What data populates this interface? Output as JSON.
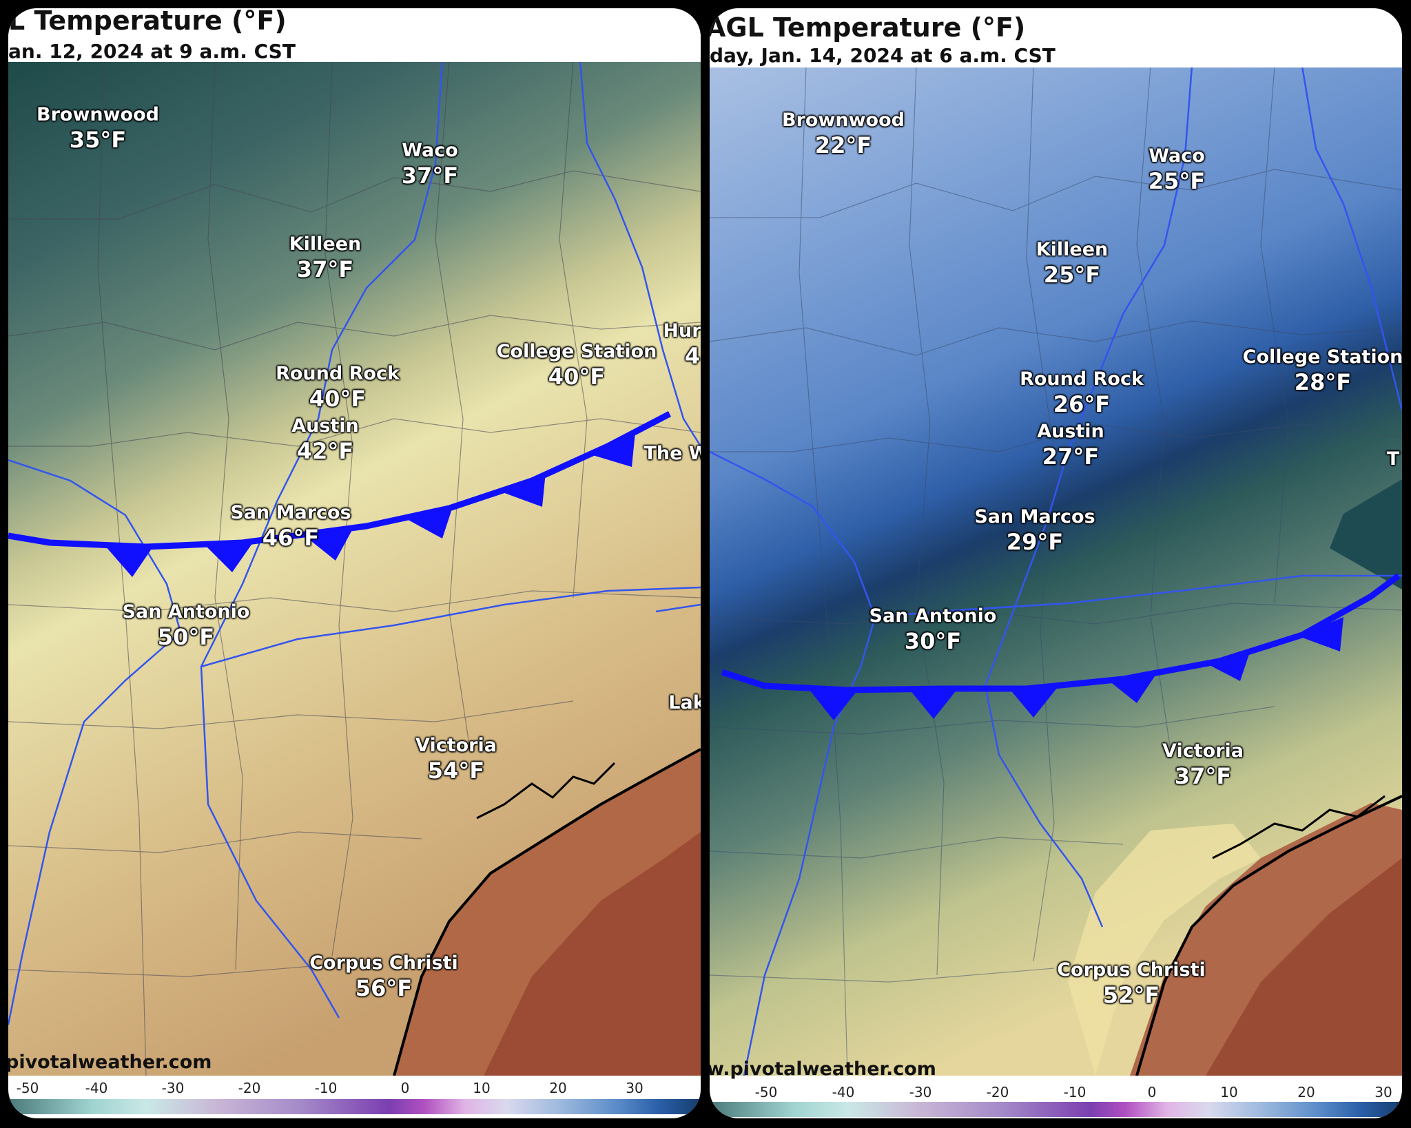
{
  "panels": {
    "left": {
      "title": "L Temperature (°F)",
      "subtitle": "an. 12, 2024 at 9 a.m. CST",
      "credit": "pivotalweather.com",
      "cities": [
        {
          "name": "Brownwood",
          "temp": "35°F"
        },
        {
          "name": "Waco",
          "temp": "37°F"
        },
        {
          "name": "Killeen",
          "temp": "37°F"
        },
        {
          "name": "College Station",
          "temp": "40°F"
        },
        {
          "name": "Round Rock",
          "temp": "40°F"
        },
        {
          "name": "Austin",
          "temp": "42°F"
        },
        {
          "name": "San Marcos",
          "temp": "46°F"
        },
        {
          "name": "San Antonio",
          "temp": "50°F"
        },
        {
          "name": "Victoria",
          "temp": "54°F"
        },
        {
          "name": "Corpus Christi",
          "temp": "56°F"
        }
      ],
      "partial_labels": [
        "Hur",
        "4",
        "The W",
        "Lak"
      ]
    },
    "right": {
      "title": "AGL Temperature (°F)",
      "subtitle": "day, Jan. 14, 2024 at 6 a.m. CST",
      "credit": "w.pivotalweather.com",
      "cities": [
        {
          "name": "Brownwood",
          "temp": "22°F"
        },
        {
          "name": "Waco",
          "temp": "25°F"
        },
        {
          "name": "Killeen",
          "temp": "25°F"
        },
        {
          "name": "College Station",
          "temp": "28°F"
        },
        {
          "name": "Round Rock",
          "temp": "26°F"
        },
        {
          "name": "Austin",
          "temp": "27°F"
        },
        {
          "name": "San Marcos",
          "temp": "29°F"
        },
        {
          "name": "San Antonio",
          "temp": "30°F"
        },
        {
          "name": "Victoria",
          "temp": "37°F"
        },
        {
          "name": "Corpus Christi",
          "temp": "52°F"
        }
      ],
      "partial_labels": [
        "T"
      ]
    }
  },
  "scale": {
    "ticks": [
      "-50",
      "-40",
      "-30",
      "-20",
      "-10",
      "0",
      "10",
      "20",
      "30"
    ]
  },
  "colors": {
    "front": "#1010ff",
    "rivers": "#3355ee"
  }
}
